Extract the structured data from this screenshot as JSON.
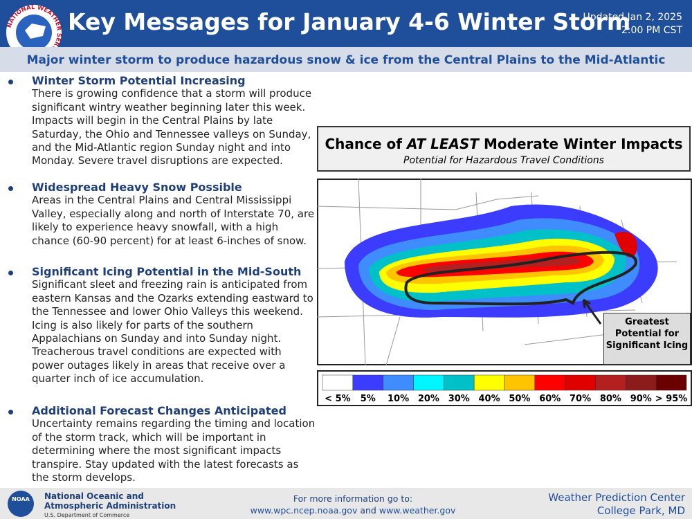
{
  "header": {
    "logo_text": "NATIONAL WEATHER SERVICE",
    "title": "Key Messages for January 4-6 Winter Storm",
    "updated": [
      "Updated Jan 2, 2025",
      "2:00 PM CST"
    ]
  },
  "subtitle": "Major winter storm to produce hazardous snow & ice from the Central Plains to the Mid-Atlantic",
  "bullets": [
    {
      "heading": "Winter Storm Potential Increasing",
      "text": "There is growing confidence that a storm will produce significant wintry weather beginning later this week. Impacts will begin in the Central Plains by late Saturday, the Ohio and Tennessee valleys on Sunday, and the Mid-Atlantic region Sunday night and into Monday.  Severe travel disruptions are expected."
    },
    {
      "heading": "Widespread Heavy Snow Possible",
      "text": "Areas in the Central Plains and Central Mississippi Valley, especially along and north of Interstate 70, are likely to experience heavy snowfall, with a high chance (60-90 percent) for at least 6-inches of snow."
    },
    {
      "heading": "Significant Icing Potential in the Mid-South",
      "text": "Significant sleet and freezing rain is anticipated from eastern Kansas and the Ozarks extending eastward to the Tennessee and lower Ohio Valleys this weekend. Icing is also likely for parts of the southern Appalachians on Sunday and into Sunday night. Treacherous travel conditions are expected with power outages likely in areas that receive over a quarter inch of ice accumulation."
    },
    {
      "heading": "Additional Forecast Changes Anticipated",
      "text": "Uncertainty remains regarding the timing and location of the storm track, which will be important in determining where the most significant impacts transpire. Stay updated with the latest forecasts as the storm develops."
    }
  ],
  "map_panel": {
    "title": [
      "Chance of ",
      "AT LEAST",
      " Moderate Winter Impacts"
    ],
    "subtitle": "Potential for Hazardous Travel Conditions",
    "annotation": "Greatest Potential for Significant Icing",
    "legend": [
      {
        "label": "< 5%",
        "color": "#ffffff"
      },
      {
        "label": "5%",
        "color": "#3c3cff"
      },
      {
        "label": "10%",
        "color": "#3f8cff"
      },
      {
        "label": "20%",
        "color": "#00f5ff"
      },
      {
        "label": "30%",
        "color": "#00c0c8"
      },
      {
        "label": "40%",
        "color": "#ffff00"
      },
      {
        "label": "50%",
        "color": "#ffc400"
      },
      {
        "label": "60%",
        "color": "#ff0000"
      },
      {
        "label": "70%",
        "color": "#e00000"
      },
      {
        "label": "80%",
        "color": "#b42020"
      },
      {
        "label": "90%",
        "color": "#8c1c1c"
      },
      {
        "label": "> 95%",
        "color": "#6a0000"
      }
    ]
  },
  "footer": {
    "noaa": "NOAA",
    "agency": [
      "National Oceanic and",
      "Atmospheric Administration"
    ],
    "department": "U.S. Department of Commerce",
    "info": "For more information go to:",
    "links": [
      "www.wpc.ncep.noaa.gov",
      "and",
      "www.weather.gov"
    ],
    "office": [
      "Weather Prediction Center",
      "College Park, MD"
    ]
  }
}
